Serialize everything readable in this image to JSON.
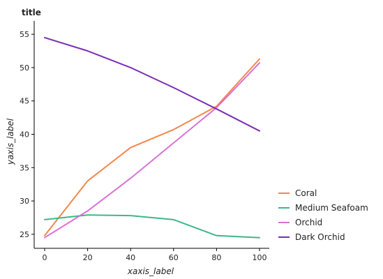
{
  "chart_data": {
    "type": "line",
    "title": "title",
    "xlabel": "xaxis_label",
    "ylabel": "yaxis_label",
    "xlim": [
      0,
      100
    ],
    "ylim": [
      23,
      57
    ],
    "x_ticks": [
      0,
      20,
      40,
      60,
      80,
      100
    ],
    "y_ticks": [
      25,
      30,
      35,
      40,
      45,
      50,
      55
    ],
    "grid": false,
    "legend_position": "right",
    "series": [
      {
        "name": "Coral",
        "color": "#F4874B",
        "x": [
          0,
          20,
          40,
          60,
          80,
          100
        ],
        "y": [
          24.8,
          33.0,
          38.0,
          40.7,
          44.2,
          51.3
        ]
      },
      {
        "name": "Medium Seafoam",
        "color": "#3CB887",
        "x": [
          0,
          20,
          40,
          60,
          80,
          100
        ],
        "y": [
          27.2,
          27.9,
          27.8,
          27.2,
          24.8,
          24.5
        ]
      },
      {
        "name": "Orchid",
        "color": "#DA70D6",
        "x": [
          0,
          20,
          40,
          60,
          80,
          100
        ],
        "y": [
          24.5,
          28.5,
          33.4,
          38.7,
          44.0,
          50.7
        ]
      },
      {
        "name": "Dark Orchid",
        "color": "#7B2CB8",
        "x": [
          0,
          20,
          40,
          60,
          80,
          100
        ],
        "y": [
          54.5,
          52.5,
          50.0,
          47.0,
          43.8,
          40.5
        ]
      }
    ]
  }
}
